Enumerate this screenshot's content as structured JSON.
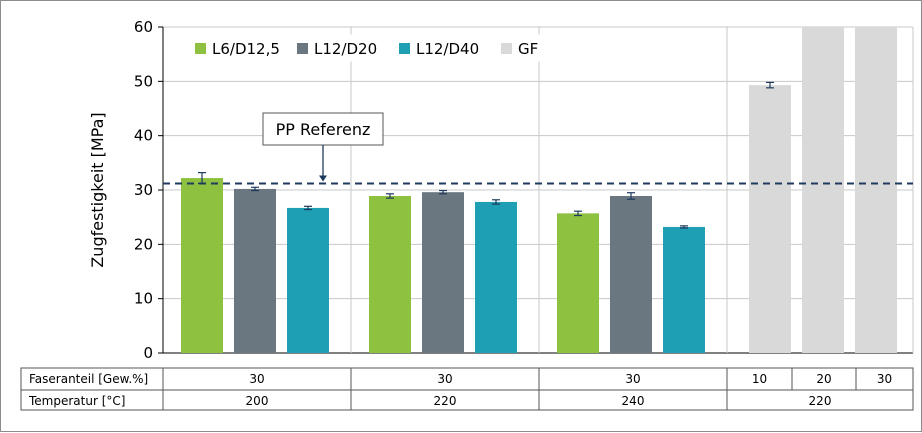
{
  "chart_data": {
    "type": "bar",
    "ylabel": "Zugfestigkeit [MPa]",
    "ylim": [
      0,
      60
    ],
    "yticks": [
      0,
      10,
      20,
      30,
      40,
      50,
      60
    ],
    "grid": "horizontal and vertical group separators",
    "reference": {
      "label": "PP Referenz",
      "value": 31.2,
      "style": "dashed"
    },
    "legend": [
      {
        "name": "L6/D12,5",
        "color": "#8dc13f"
      },
      {
        "name": "L12/D20",
        "color": "#6a7780"
      },
      {
        "name": "L12/D40",
        "color": "#1e9fb3"
      },
      {
        "name": "GF",
        "color": "#d9d9d9"
      }
    ],
    "groups": [
      {
        "faseranteil": "30",
        "temperatur": "200",
        "bars": [
          {
            "series": "L6/D12,5",
            "value": 32.2,
            "err": 1.0
          },
          {
            "series": "L12/D20",
            "value": 30.2,
            "err": 0.3
          },
          {
            "series": "L12/D40",
            "value": 26.7,
            "err": 0.3
          }
        ]
      },
      {
        "faseranteil": "30",
        "temperatur": "220",
        "bars": [
          {
            "series": "L6/D12,5",
            "value": 28.9,
            "err": 0.4
          },
          {
            "series": "L12/D20",
            "value": 29.6,
            "err": 0.3
          },
          {
            "series": "L12/D40",
            "value": 27.8,
            "err": 0.4
          }
        ]
      },
      {
        "faseranteil": "30",
        "temperatur": "240",
        "bars": [
          {
            "series": "L6/D12,5",
            "value": 25.7,
            "err": 0.4
          },
          {
            "series": "L12/D20",
            "value": 28.9,
            "err": 0.6
          },
          {
            "series": "L12/D40",
            "value": 23.2,
            "err": 0.2
          }
        ]
      },
      {
        "faseranteil": [
          "10",
          "20",
          "30"
        ],
        "temperatur": "220",
        "bars": [
          {
            "series": "GF",
            "value": 49.3,
            "err": 0.5
          },
          {
            "series": "GF",
            "value": 60,
            "err": 0
          },
          {
            "series": "GF",
            "value": 60,
            "err": 0
          }
        ]
      }
    ],
    "table": {
      "row1_label": "Faseranteil [Gew.%]",
      "row2_label": "Temperatur [°C]"
    }
  }
}
